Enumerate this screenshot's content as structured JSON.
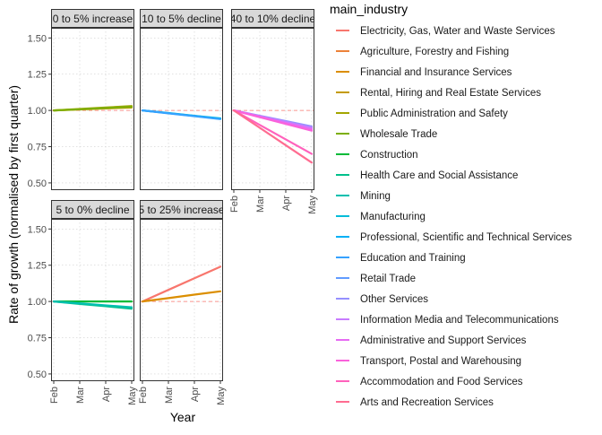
{
  "chart_data": {
    "type": "line",
    "title": "",
    "xlabel": "Year",
    "ylabel": "Rate of growth (normalised by first quarter)",
    "x_ticks": [
      "Feb",
      "Mar",
      "Apr",
      "May"
    ],
    "y_ticks": [
      0.5,
      0.75,
      1.0,
      1.25,
      1.5
    ],
    "y_tick_labels": [
      "0.50",
      "0.75",
      "1.00",
      "1.25",
      "1.50"
    ],
    "ylim": [
      0.45,
      1.57
    ],
    "reference_line": 1.0,
    "reference_color": "#F8766D",
    "grid": true,
    "legend": {
      "title": "main_industry",
      "placement": "right",
      "items": [
        {
          "name": "Electricity, Gas, Water and Waste Services",
          "color": "#F8766D"
        },
        {
          "name": "Agriculture, Forestry and Fishing",
          "color": "#EC8239"
        },
        {
          "name": "Financial and Insurance Services",
          "color": "#DB8E00"
        },
        {
          "name": "Rental, Hiring and Real Estate Services",
          "color": "#C49A00"
        },
        {
          "name": "Public Administration and Safety",
          "color": "#A3A500"
        },
        {
          "name": "Wholesale Trade",
          "color": "#7CAE00"
        },
        {
          "name": "Construction",
          "color": "#00BA38"
        },
        {
          "name": "Health Care and Social Assistance",
          "color": "#00C08B"
        },
        {
          "name": "Mining",
          "color": "#00BFAF"
        },
        {
          "name": "Manufacturing",
          "color": "#00BCD8"
        },
        {
          "name": "Professional, Scientific and Technical Services",
          "color": "#00B0F6"
        },
        {
          "name": "Education and Training",
          "color": "#35A2FF"
        },
        {
          "name": "Retail Trade",
          "color": "#619CFF"
        },
        {
          "name": "Other Services",
          "color": "#9590FF"
        },
        {
          "name": "Information Media and Telecommunications",
          "color": "#C77CFF"
        },
        {
          "name": "Administrative and Support Services",
          "color": "#E76BF3"
        },
        {
          "name": "Transport, Postal and Warehousing",
          "color": "#FA62DB"
        },
        {
          "name": "Accommodation and Food Services",
          "color": "#FF62BC"
        },
        {
          "name": "Arts and Recreation Services",
          "color": "#FF6C91"
        }
      ]
    },
    "panels": [
      {
        "label": "0 to 5% increase",
        "show_x_axis": false,
        "series": [
          {
            "color": "#C49A00",
            "values": [
              1.0,
              1.007,
              1.014,
              1.02
            ]
          },
          {
            "color": "#A3A500",
            "values": [
              1.0,
              1.01,
              1.02,
              1.03
            ]
          },
          {
            "color": "#7CAE00",
            "values": [
              1.0,
              1.008,
              1.017,
              1.025
            ]
          }
        ]
      },
      {
        "label": "10 to 5% decline",
        "show_x_axis": false,
        "series": [
          {
            "color": "#00BCD8",
            "values": [
              1.0,
              0.982,
              0.963,
              0.945
            ]
          },
          {
            "color": "#00B0F6",
            "values": [
              1.0,
              0.981,
              0.962,
              0.942
            ]
          },
          {
            "color": "#35A2FF",
            "values": [
              1.0,
              0.98,
              0.96,
              0.94
            ]
          }
        ]
      },
      {
        "label": "40 to 10% decline",
        "show_x_axis": true,
        "series": [
          {
            "color": "#9590FF",
            "values": [
              1.0,
              0.963,
              0.927,
              0.89
            ]
          },
          {
            "color": "#C77CFF",
            "values": [
              1.0,
              0.96,
              0.92,
              0.88
            ]
          },
          {
            "color": "#E76BF3",
            "values": [
              1.0,
              0.957,
              0.913,
              0.87
            ]
          },
          {
            "color": "#FA62DB",
            "values": [
              1.0,
              0.953,
              0.907,
              0.86
            ]
          },
          {
            "color": "#FF62BC",
            "values": [
              1.0,
              0.9,
              0.8,
              0.7
            ]
          },
          {
            "color": "#FF6C91",
            "values": [
              1.0,
              0.88,
              0.76,
              0.64
            ]
          }
        ]
      },
      {
        "label": "5 to 0% decline",
        "show_x_axis": true,
        "series": [
          {
            "color": "#00BA38",
            "values": [
              1.0,
              1.0,
              1.0,
              1.0
            ]
          },
          {
            "color": "#00C08B",
            "values": [
              1.0,
              0.983,
              0.967,
              0.95
            ]
          },
          {
            "color": "#00BFAF",
            "values": [
              1.0,
              0.987,
              0.973,
              0.96
            ]
          }
        ]
      },
      {
        "label": "5 to 25% increase",
        "show_x_axis": true,
        "series": [
          {
            "color": "#F8766D",
            "values": [
              1.0,
              1.08,
              1.16,
              1.24
            ]
          },
          {
            "color": "#DB8E00",
            "values": [
              1.0,
              1.023,
              1.047,
              1.07
            ]
          }
        ]
      }
    ]
  }
}
